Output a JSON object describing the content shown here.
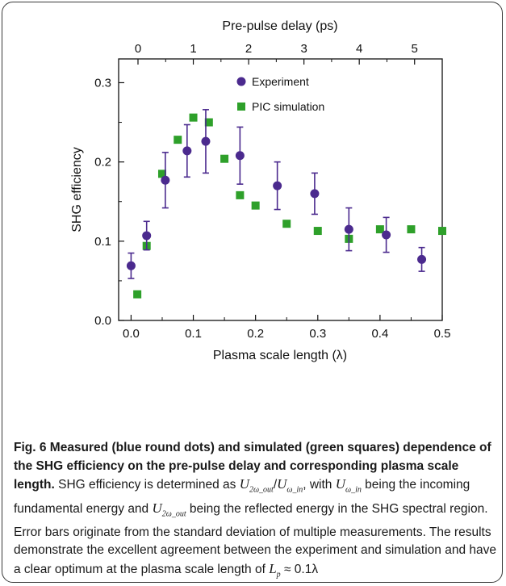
{
  "chart_data": {
    "type": "scatter",
    "x_bottom": {
      "label": "Plasma scale length (λ)",
      "range": [
        -0.02,
        0.5
      ],
      "ticks": [
        "0.0",
        "0.1",
        "0.2",
        "0.3",
        "0.4",
        "0.5"
      ]
    },
    "x_top": {
      "label": "Pre-pulse delay (ps)",
      "range": [
        -0.35,
        5.5
      ],
      "ticks": [
        "0",
        "1",
        "2",
        "3",
        "4",
        "5"
      ]
    },
    "y": {
      "label": "SHG efficiency",
      "range": [
        0.0,
        0.33
      ],
      "ticks": [
        "0.0",
        "0.1",
        "0.2",
        "0.3"
      ]
    },
    "legend_position": "top-right",
    "grid": false,
    "series": [
      {
        "name": "Experiment",
        "marker": "circle",
        "color": "#4b2a8e",
        "points": [
          {
            "x": 0.0,
            "y": 0.069,
            "yerr": 0.016
          },
          {
            "x": 0.025,
            "y": 0.107,
            "yerr": 0.018
          },
          {
            "x": 0.055,
            "y": 0.177,
            "yerr": 0.035
          },
          {
            "x": 0.09,
            "y": 0.214,
            "yerr": 0.033
          },
          {
            "x": 0.12,
            "y": 0.226,
            "yerr": 0.04
          },
          {
            "x": 0.175,
            "y": 0.208,
            "yerr": 0.036
          },
          {
            "x": 0.235,
            "y": 0.17,
            "yerr": 0.03
          },
          {
            "x": 0.295,
            "y": 0.16,
            "yerr": 0.026
          },
          {
            "x": 0.35,
            "y": 0.115,
            "yerr": 0.027
          },
          {
            "x": 0.41,
            "y": 0.108,
            "yerr": 0.022
          },
          {
            "x": 0.467,
            "y": 0.077,
            "yerr": 0.015
          }
        ]
      },
      {
        "name": "PIC simulation",
        "marker": "square",
        "color": "#2ea02a",
        "points": [
          {
            "x": 0.01,
            "y": 0.033
          },
          {
            "x": 0.025,
            "y": 0.094
          },
          {
            "x": 0.05,
            "y": 0.185
          },
          {
            "x": 0.075,
            "y": 0.228
          },
          {
            "x": 0.1,
            "y": 0.256
          },
          {
            "x": 0.125,
            "y": 0.25
          },
          {
            "x": 0.15,
            "y": 0.204
          },
          {
            "x": 0.175,
            "y": 0.158
          },
          {
            "x": 0.2,
            "y": 0.145
          },
          {
            "x": 0.25,
            "y": 0.122
          },
          {
            "x": 0.3,
            "y": 0.113
          },
          {
            "x": 0.35,
            "y": 0.103
          },
          {
            "x": 0.4,
            "y": 0.115
          },
          {
            "x": 0.45,
            "y": 0.115
          },
          {
            "x": 0.5,
            "y": 0.113
          }
        ]
      }
    ]
  },
  "caption": {
    "bold": "Fig. 6 Measured (blue round dots) and simulated (green squares) dependence of the SHG efficiency on the pre-pulse delay and corresponding plasma scale length.",
    "text_1": " SHG efficiency is determined as ",
    "math_1": "U",
    "math_1_sub": "2ω_out",
    "math_slash": "/",
    "math_2": "U",
    "math_2_sub": "ω_in",
    "text_2": ", with ",
    "math_3": "U",
    "math_3_sub": "ω_in",
    "text_3": " being the incoming fundamental energy and ",
    "math_4": "U",
    "math_4_sub": "2ω_out",
    "text_4": " being the reflected energy in the SHG spectral region. Error bars originate from the standard deviation of multiple measurements. The results demonstrate the excellent agreement between the experiment and simulation and have a clear optimum at the plasma scale length of ",
    "math_5": "L",
    "math_5_sub": "p",
    "text_5": " ≈ 0.1λ"
  }
}
